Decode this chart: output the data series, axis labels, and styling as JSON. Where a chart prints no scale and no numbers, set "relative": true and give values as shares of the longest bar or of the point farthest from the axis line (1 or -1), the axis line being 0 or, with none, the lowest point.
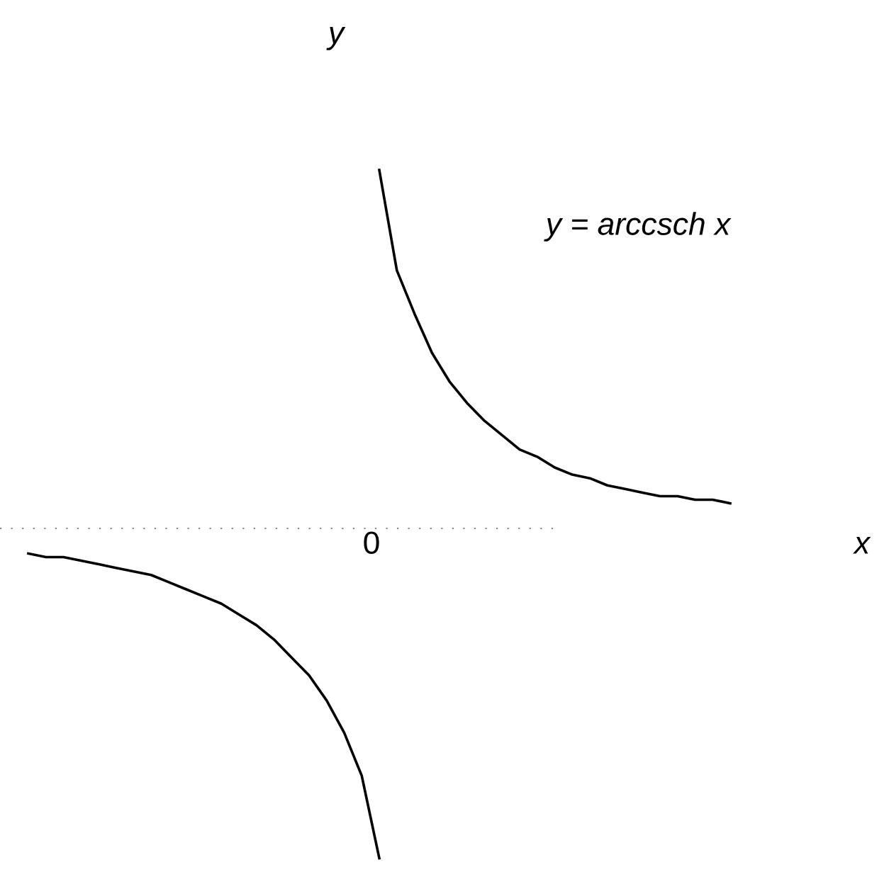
{
  "chart_data": {
    "type": "line",
    "relative": true,
    "xlabel": "x",
    "ylabel": "y",
    "categories": [
      null,
      null,
      null,
      null,
      null,
      null,
      null,
      null,
      null,
      null,
      null,
      null,
      null,
      null,
      null,
      null,
      null,
      null,
      null,
      null,
      null,
      null,
      null,
      null,
      null,
      null,
      null,
      null,
      null,
      null,
      null,
      null,
      null,
      null,
      null,
      null,
      null,
      null,
      null,
      null,
      null
    ],
    "series": [
      {
        "color": "#000000",
        "values": [
          -0.07,
          -0.08,
          -0.08,
          -0.09,
          -0.1,
          -0.11,
          -0.12,
          -0.13,
          -0.15,
          -0.17,
          -0.19,
          -0.21,
          -0.24,
          -0.27,
          -0.31,
          -0.36,
          -0.41,
          -0.48,
          -0.57,
          -0.69,
          -0.92,
          null,
          null,
          null,
          null,
          null,
          null,
          null,
          null,
          null,
          null,
          null,
          null,
          null,
          null,
          null,
          null,
          null,
          null,
          null,
          null
        ]
      },
      {
        "color": "#000000",
        "values": [
          null,
          null,
          null,
          null,
          null,
          null,
          null,
          null,
          null,
          null,
          null,
          null,
          null,
          null,
          null,
          null,
          null,
          null,
          null,
          null,
          1.0,
          0.72,
          0.6,
          0.49,
          0.41,
          0.35,
          0.3,
          0.26,
          0.22,
          0.2,
          0.17,
          0.15,
          0.14,
          0.12,
          0.11,
          0.1,
          0.09,
          0.09,
          0.08,
          0.08,
          0.07
        ]
      }
    ],
    "annotations": [
      "y = arccsch x",
      "0"
    ],
    "ref_lines": [
      {
        "axis": "y",
        "value": 0,
        "color": "#888888",
        "line_style": "dotted"
      }
    ],
    "line_style": "solid",
    "marker": "none"
  }
}
